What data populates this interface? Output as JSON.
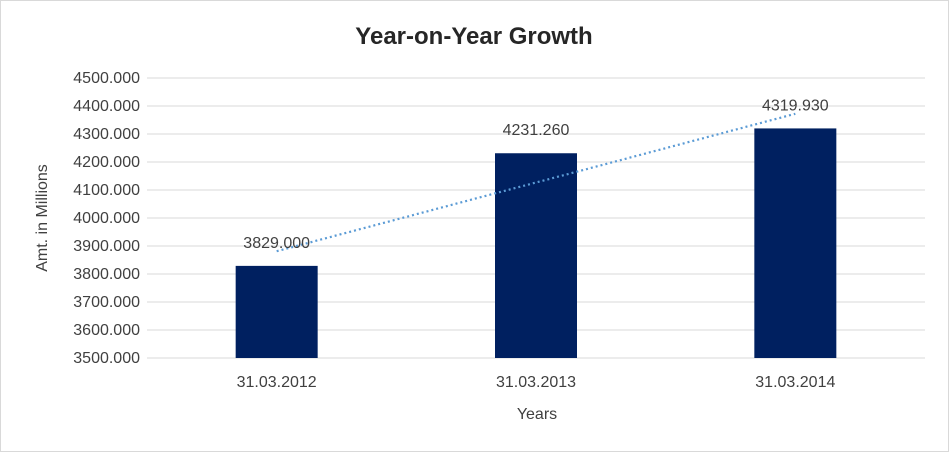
{
  "chart_data": {
    "type": "bar",
    "title": "Year-on-Year Growth",
    "xlabel": "Years",
    "ylabel": "Amt. in Millions",
    "categories": [
      "31.03.2012",
      "31.03.2013",
      "31.03.2014"
    ],
    "values": [
      3829.0,
      4231.26,
      4319.93
    ],
    "data_labels": [
      "3829.000",
      "4231.260",
      "4319.930"
    ],
    "ylim": [
      3500,
      4500
    ],
    "ytick_step": 100,
    "ytick_decimals": 3,
    "grid": true,
    "legend": "none",
    "trendline": {
      "type": "linear",
      "style": "dotted",
      "color": "#5B9BD5"
    },
    "colors": {
      "bar": "#002060",
      "grid": "#d9d9d9",
      "text": "#404040"
    }
  }
}
